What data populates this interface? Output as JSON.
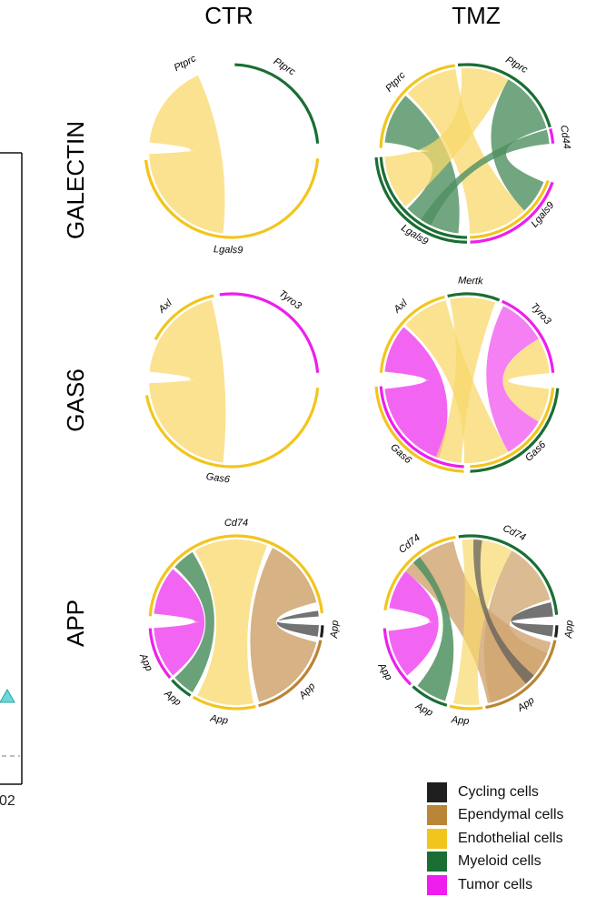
{
  "columns": [
    "CTR",
    "TMZ"
  ],
  "rows": [
    "GALECTIN",
    "GAS6",
    "APP"
  ],
  "partial_left_label": "02",
  "colors": {
    "cycling": "#1f1f1f",
    "ependymal": "#b98536",
    "endothelial": "#f2c51d",
    "endothelial_ribbon": "#f8d86c",
    "myeloid": "#1a6e34",
    "myeloid_ribbon": "#4f9060",
    "tumor": "#ee1eee",
    "tumor_ribbon": "#f04af0",
    "ependymal_ribbon": "#cfa46e",
    "cycling_ribbon": "#5a5a5a"
  },
  "legend": [
    {
      "label": "Cycling cells",
      "color": "#1f1f1f"
    },
    {
      "label": "Ependymal cells",
      "color": "#b98536"
    },
    {
      "label": "Endothelial cells",
      "color": "#f2c51d"
    },
    {
      "label": "Myeloid cells",
      "color": "#1a6e34"
    },
    {
      "label": "Tumor cells",
      "color": "#ee1eee"
    }
  ],
  "diagrams": [
    {
      "row": "GALECTIN",
      "column": "CTR",
      "arcs": [
        {
          "gene": "Ptprc",
          "start": 132,
          "end": 174,
          "cells": [
            "endothelial"
          ]
        },
        {
          "gene": "Ptprc",
          "start": 272,
          "end": 355,
          "cells": [
            "myeloid"
          ]
        },
        {
          "gene": "Lgals9",
          "start": 5,
          "end": 170,
          "cells": [
            "endothelial"
          ]
        }
      ],
      "links": [
        {
          "from": [
            186,
            246
          ],
          "to": [
            96,
            178
          ],
          "color": "endothelial",
          "alpha": 0.75
        }
      ],
      "labels": [
        {
          "text": "Ptprc",
          "angle": 242
        },
        {
          "text": "Ptprc",
          "angle": 302
        },
        {
          "text": "Lgals9",
          "angle": 92
        }
      ]
    },
    {
      "row": "GALECTIN",
      "column": "TMZ",
      "arcs": [
        {
          "gene": "Ptprc",
          "start": 182,
          "end": 262,
          "cells": [
            "endothelial"
          ]
        },
        {
          "gene": "Ptprc",
          "start": 264,
          "end": 344,
          "cells": [
            "myeloid"
          ]
        },
        {
          "gene": "Cd44",
          "start": 345,
          "end": 355,
          "cells": [
            "tumor"
          ]
        },
        {
          "gene": "Lgals9",
          "start": 20,
          "end": 88,
          "cells": [
            "endothelial",
            "tumor"
          ]
        },
        {
          "gene": "Lgals9",
          "start": 90,
          "end": 176,
          "cells": [
            "myeloid",
            "myeloid"
          ]
        }
      ],
      "links": [
        {
          "from": [
            186,
            222
          ],
          "to": [
            96,
            136
          ],
          "color": "myeloid",
          "alpha": 0.8
        },
        {
          "from": [
            224,
            262
          ],
          "to": [
            46,
            88
          ],
          "color": "endothelial",
          "alpha": 0.75
        },
        {
          "from": [
            266,
            300
          ],
          "to": [
            138,
            176
          ],
          "color": "endothelial",
          "alpha": 0.75
        },
        {
          "from": [
            300,
            344
          ],
          "to": [
            22,
            46
          ],
          "color": "myeloid",
          "alpha": 0.8
        },
        {
          "from": [
            345,
            355
          ],
          "to": [
            116,
            124
          ],
          "color": "myeloid",
          "alpha": 0.8
        }
      ],
      "labels": [
        {
          "text": "Ptprc",
          "angle": 224
        },
        {
          "text": "Ptprc",
          "angle": 300
        },
        {
          "text": "Cd44",
          "angle": 352
        },
        {
          "text": "Lgals9",
          "angle": 122
        },
        {
          "text": "Lgals9",
          "angle": 40
        }
      ]
    },
    {
      "row": "GAS6",
      "column": "CTR",
      "arcs": [
        {
          "gene": "Axl",
          "start": 208,
          "end": 258,
          "cells": [
            "endothelial"
          ]
        },
        {
          "gene": "Tyro3",
          "start": 262,
          "end": 355,
          "cells": [
            "tumor"
          ]
        },
        {
          "gene": "Gas6",
          "start": 5,
          "end": 170,
          "cells": [
            "endothelial"
          ]
        }
      ],
      "links": [
        {
          "from": [
            186,
            256
          ],
          "to": [
            96,
            178
          ],
          "color": "endothelial",
          "alpha": 0.75
        }
      ],
      "labels": [
        {
          "text": "Axl",
          "angle": 228
        },
        {
          "text": "Tyro3",
          "angle": 306
        },
        {
          "text": "Gas6",
          "angle": 98
        }
      ]
    },
    {
      "row": "GAS6",
      "column": "TMZ",
      "arcs": [
        {
          "gene": "Axl",
          "start": 185,
          "end": 255,
          "cells": [
            "endothelial"
          ]
        },
        {
          "gene": "Mertk",
          "start": 257,
          "end": 292,
          "cells": [
            "myeloid"
          ]
        },
        {
          "gene": "Tyro3",
          "start": 294,
          "end": 355,
          "cells": [
            "tumor"
          ]
        },
        {
          "gene": "Gas6",
          "start": 5,
          "end": 88,
          "cells": [
            "endothelial",
            "myeloid"
          ]
        },
        {
          "gene": "Gas6",
          "start": 92,
          "end": 176,
          "cells": [
            "tumor",
            "endothelial"
          ]
        }
      ],
      "links": [
        {
          "from": [
            186,
            220
          ],
          "to": [
            110,
            174
          ],
          "color": "tumor",
          "alpha": 0.85
        },
        {
          "from": [
            222,
            255
          ],
          "to": [
            60,
            92
          ],
          "color": "endothelial",
          "alpha": 0.75
        },
        {
          "from": [
            258,
            290
          ],
          "to": [
            94,
            112
          ],
          "color": "endothelial",
          "alpha": 0.75
        },
        {
          "from": [
            296,
            330
          ],
          "to": [
            30,
            60
          ],
          "color": "tumor",
          "alpha": 0.7
        },
        {
          "from": [
            330,
            355
          ],
          "to": [
            6,
            30
          ],
          "color": "endothelial",
          "alpha": 0.75
        }
      ],
      "labels": [
        {
          "text": "Axl",
          "angle": 228
        },
        {
          "text": "Mertk",
          "angle": 272
        },
        {
          "text": "Tyro3",
          "angle": 318
        },
        {
          "text": "Gas6",
          "angle": 132
        },
        {
          "text": "Gas6",
          "angle": 46
        }
      ]
    },
    {
      "row": "APP",
      "column": "CTR",
      "arcs": [
        {
          "gene": "Cd74",
          "start": 184,
          "end": 354,
          "cells": [
            "endothelial"
          ]
        },
        {
          "gene": "App",
          "start": 2,
          "end": 10,
          "cells": [
            "cycling"
          ]
        },
        {
          "gene": "App",
          "start": 12,
          "end": 75,
          "cells": [
            "ependymal"
          ]
        },
        {
          "gene": "App",
          "start": 77,
          "end": 120,
          "cells": [
            "endothelial"
          ]
        },
        {
          "gene": "App",
          "start": 122,
          "end": 138,
          "cells": [
            "myeloid"
          ]
        },
        {
          "gene": "App",
          "start": 140,
          "end": 176,
          "cells": [
            "tumor"
          ]
        }
      ],
      "links": [
        {
          "from": [
            296,
            346
          ],
          "to": [
            14,
            74
          ],
          "color": "ependymal",
          "alpha": 0.85
        },
        {
          "from": [
            352,
            356
          ],
          "to": [
            2,
            10
          ],
          "color": "cycling",
          "alpha": 0.85
        },
        {
          "from": [
            240,
            292
          ],
          "to": [
            78,
            118
          ],
          "color": "endothelial",
          "alpha": 0.75
        },
        {
          "from": [
            222,
            238
          ],
          "to": [
            122,
            138
          ],
          "color": "myeloid",
          "alpha": 0.85
        },
        {
          "from": [
            186,
            220
          ],
          "to": [
            140,
            176
          ],
          "color": "tumor",
          "alpha": 0.85
        }
      ],
      "labels": [
        {
          "text": "Cd74",
          "angle": 270
        },
        {
          "text": "App",
          "angle": 4
        },
        {
          "text": "App",
          "angle": 44
        },
        {
          "text": "App",
          "angle": 100
        },
        {
          "text": "App",
          "angle": 130
        },
        {
          "text": "App",
          "angle": 156
        }
      ]
    },
    {
      "row": "APP",
      "column": "TMZ",
      "arcs": [
        {
          "gene": "Cd74",
          "start": 188,
          "end": 260,
          "cells": [
            "endothelial"
          ]
        },
        {
          "gene": "Cd74",
          "start": 262,
          "end": 355,
          "cells": [
            "myeloid"
          ]
        },
        {
          "gene": "App",
          "start": 2,
          "end": 10,
          "cells": [
            "cycling"
          ]
        },
        {
          "gene": "App",
          "start": 12,
          "end": 80,
          "cells": [
            "ependymal"
          ]
        },
        {
          "gene": "App",
          "start": 82,
          "end": 104,
          "cells": [
            "endothelial"
          ]
        },
        {
          "gene": "App",
          "start": 106,
          "end": 132,
          "cells": [
            "myeloid"
          ]
        },
        {
          "gene": "App",
          "start": 134,
          "end": 176,
          "cells": [
            "tumor"
          ]
        }
      ],
      "links": [
        {
          "from": [
            190,
            218
          ],
          "to": [
            140,
            174
          ],
          "color": "tumor",
          "alpha": 0.85
        },
        {
          "from": [
            218,
            258
          ],
          "to": [
            14,
            78
          ],
          "color": "ependymal",
          "alpha": 0.8
        },
        {
          "from": [
            264,
            300
          ],
          "to": [
            84,
            102
          ],
          "color": "endothelial",
          "alpha": 0.7
        },
        {
          "from": [
            300,
            344
          ],
          "to": [
            22,
            76
          ],
          "color": "ependymal",
          "alpha": 0.75
        },
        {
          "from": [
            346,
            356
          ],
          "to": [
            2,
            10
          ],
          "color": "cycling",
          "alpha": 0.85
        },
        {
          "from": [
            226,
            232
          ],
          "to": [
            108,
            130
          ],
          "color": "myeloid",
          "alpha": 0.85
        },
        {
          "from": [
            272,
            278
          ],
          "to": [
            40,
            48
          ],
          "color": "cycling",
          "alpha": 0.7
        }
      ],
      "labels": [
        {
          "text": "Cd74",
          "angle": 232
        },
        {
          "text": "Cd74",
          "angle": 296
        },
        {
          "text": "App",
          "angle": 4
        },
        {
          "text": "App",
          "angle": 56
        },
        {
          "text": "App",
          "angle": 96
        },
        {
          "text": "App",
          "angle": 118
        },
        {
          "text": "App",
          "angle": 150
        }
      ]
    }
  ]
}
